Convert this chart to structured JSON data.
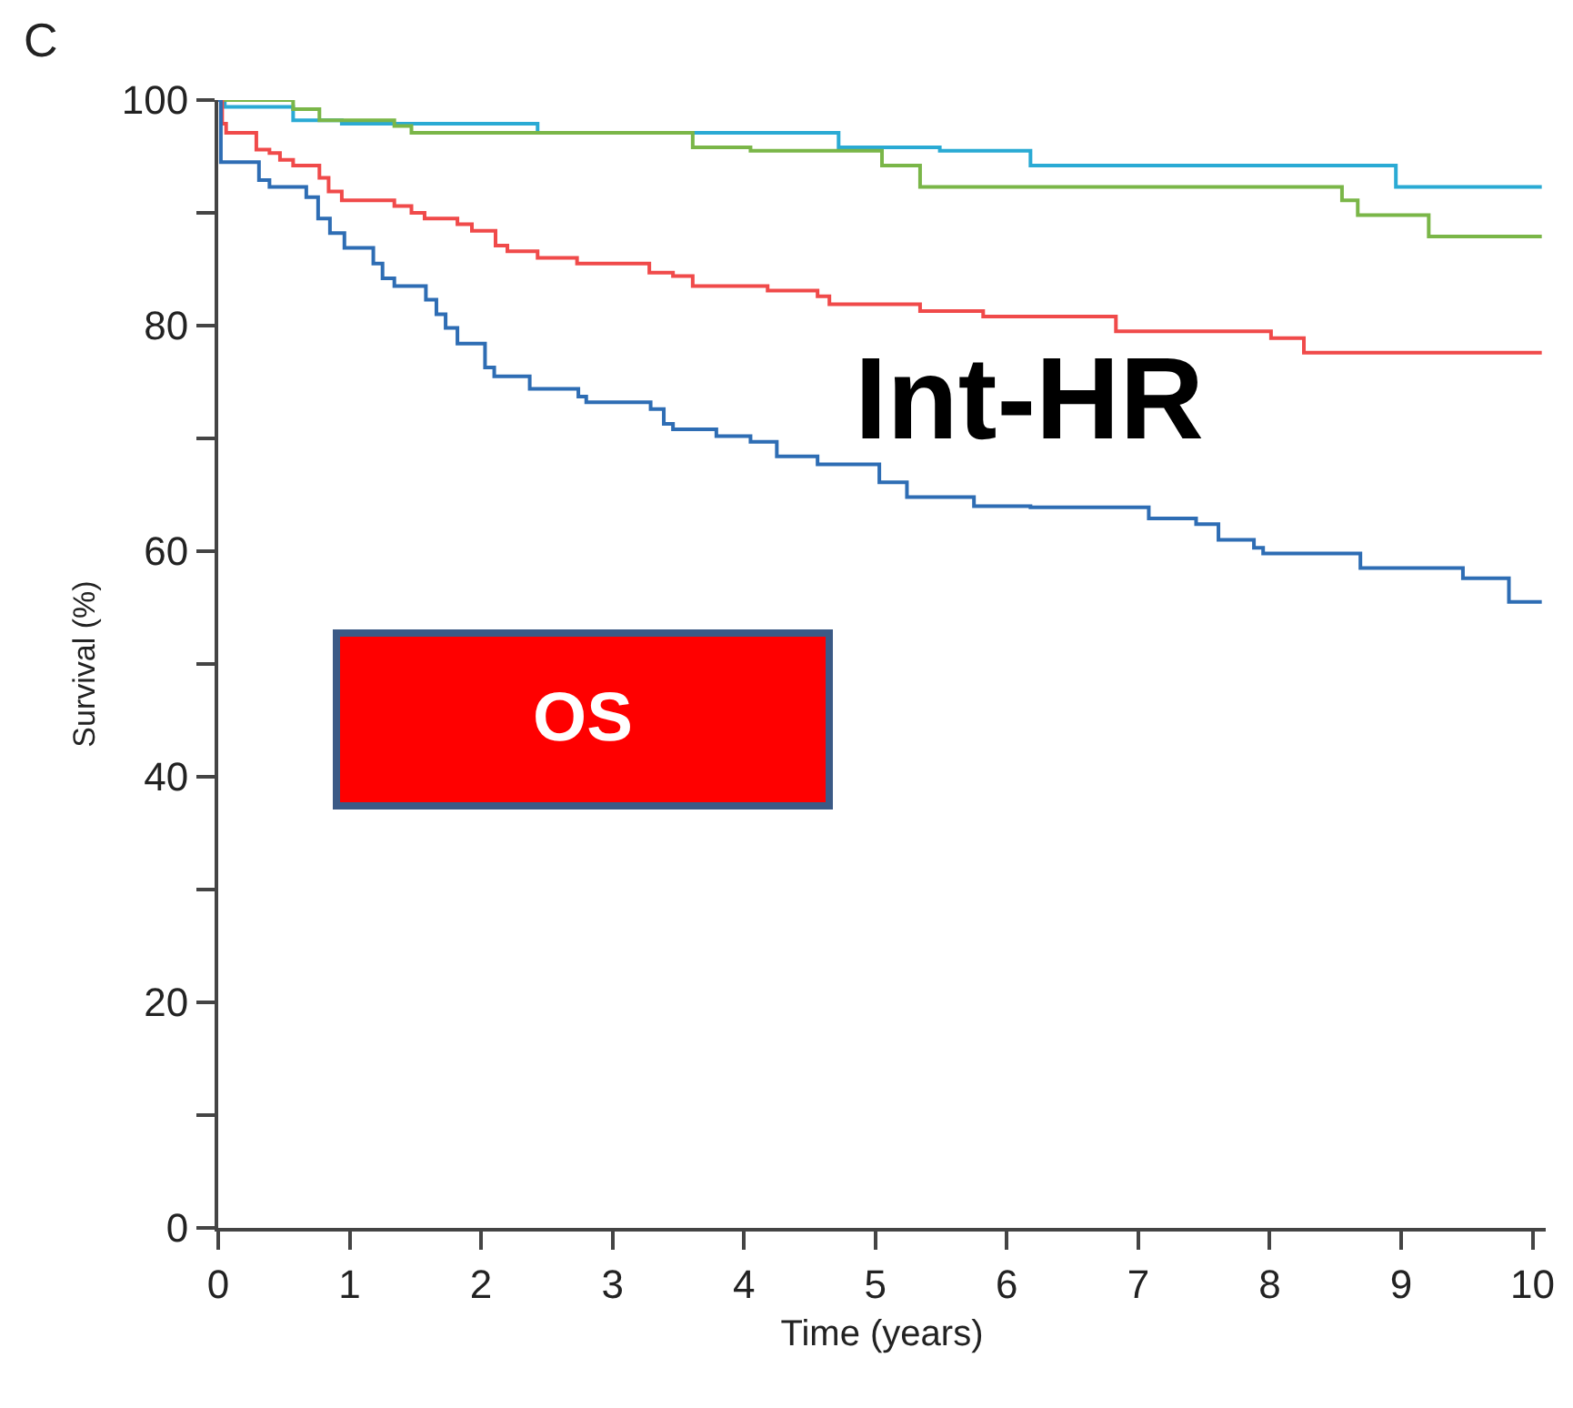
{
  "chart_data": {
    "type": "step",
    "xlabel": "Time (years)",
    "ylabel": "Survival (%)",
    "xlim": [
      0,
      10.1
    ],
    "ylim": [
      0,
      100
    ],
    "xticks": [
      0,
      1,
      2,
      3,
      4,
      5,
      6,
      7,
      8,
      9,
      10
    ],
    "yticks": [
      0,
      {
        "value": 10,
        "label": null
      },
      20,
      {
        "value": 30,
        "label": null
      },
      40,
      {
        "value": 50,
        "label": null
      },
      60,
      {
        "value": 70,
        "label": null
      },
      80,
      {
        "value": 90,
        "label": null
      },
      100
    ],
    "marker": "none",
    "line_style": "solid",
    "annotations": [
      "C",
      "Int-HR",
      "OS"
    ],
    "series": [
      {
        "color": "#2aaad4",
        "x": [
          0,
          0.05,
          0.57,
          0.94,
          2.43,
          4.72,
          5.49,
          6.18,
          8.96,
          10.07
        ],
        "values": [
          100,
          99.4,
          98.2,
          97.9,
          97.1,
          95.8,
          95.5,
          94.2,
          92.3,
          92.3
        ]
      },
      {
        "color": "#7ab648",
        "x": [
          0,
          0.57,
          0.77,
          1.34,
          1.47,
          3.61,
          4.05,
          5.05,
          5.34,
          8.55,
          8.67,
          9.21,
          10.07
        ],
        "values": [
          100,
          99.2,
          98.2,
          97.7,
          97.1,
          95.8,
          95.5,
          94.2,
          92.3,
          91.1,
          89.8,
          87.9,
          87.9
        ]
      },
      {
        "color": "#f04a4a",
        "x": [
          0,
          0.03,
          0.06,
          0.29,
          0.39,
          0.47,
          0.57,
          0.77,
          0.84,
          0.94,
          1.34,
          1.47,
          1.57,
          1.82,
          1.93,
          2.11,
          2.2,
          2.43,
          2.73,
          3.28,
          3.46,
          3.61,
          4.18,
          4.56,
          4.65,
          5.34,
          5.82,
          6.83,
          8.01,
          8.26,
          10.07
        ],
        "values": [
          100,
          97.9,
          97.1,
          95.6,
          95.3,
          94.7,
          94.2,
          93.1,
          91.9,
          91.1,
          90.6,
          90,
          89.5,
          89,
          88.4,
          87.1,
          86.6,
          86,
          85.5,
          84.7,
          84.4,
          83.5,
          83.1,
          82.6,
          81.9,
          81.3,
          80.8,
          79.5,
          78.9,
          77.6,
          77.6
        ]
      },
      {
        "color": "#2e6db4",
        "x": [
          0,
          0.02,
          0.31,
          0.39,
          0.67,
          0.76,
          0.85,
          0.96,
          1.18,
          1.25,
          1.34,
          1.58,
          1.66,
          1.73,
          1.82,
          2.03,
          2.1,
          2.37,
          2.74,
          2.8,
          3.29,
          3.39,
          3.46,
          3.79,
          4.05,
          4.25,
          4.56,
          5.03,
          5.24,
          5.75,
          6.18,
          7.08,
          7.44,
          7.61,
          7.88,
          7.95,
          8.69,
          9.47,
          9.82,
          10.07
        ],
        "values": [
          100,
          94.5,
          92.9,
          92.3,
          91.4,
          89.5,
          88.2,
          86.9,
          85.5,
          84.2,
          83.5,
          82.3,
          81,
          79.8,
          78.4,
          76.3,
          75.5,
          74.4,
          73.7,
          73.2,
          72.6,
          71.3,
          70.8,
          70.2,
          69.7,
          68.4,
          67.7,
          66.1,
          64.8,
          64,
          63.9,
          62.9,
          62.4,
          61,
          60.3,
          59.8,
          58.5,
          57.6,
          55.5,
          55.5
        ]
      }
    ]
  }
}
